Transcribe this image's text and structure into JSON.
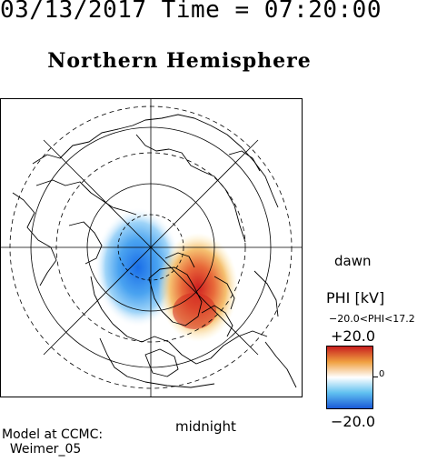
{
  "header": {
    "datetime": "03/13/2017 Time = 07:20:00",
    "title": "Northern Hemisphere"
  },
  "map": {
    "projection": "polar-stereographic",
    "hemisphere": "north",
    "dashed_latitude_circles": 4,
    "meridian_lines": 8,
    "cell_potential": [
      {
        "sign": "negative",
        "color": "#1a6ee8",
        "location": "dusk-side"
      },
      {
        "sign": "positive",
        "color": "#d02020",
        "location": "dawn-side"
      }
    ]
  },
  "labels": {
    "dawn": "dawn",
    "midnight": "midnight"
  },
  "colorbar": {
    "title": "PHI [kV]",
    "range_text": "−20.0<PHI<17.2",
    "max_label": "+20.0",
    "min_label": "−20.0",
    "mid_tick": "0",
    "colors": [
      "#c81e1e",
      "#f0a040",
      "#ffffff",
      "#60c0f0",
      "#1a5ad8"
    ]
  },
  "credit": {
    "line1": "Model at CCMC:",
    "line2": "Weimer_05"
  }
}
